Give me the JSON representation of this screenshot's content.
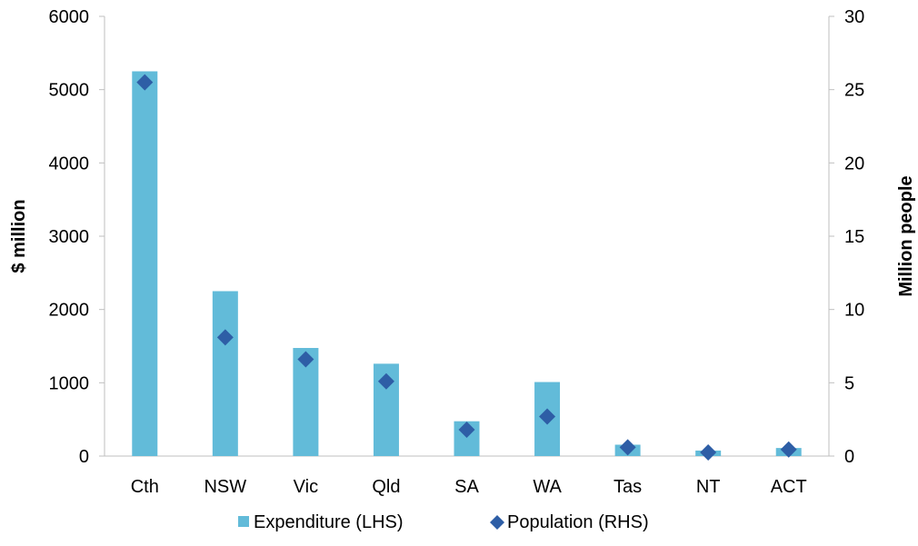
{
  "chart_data": {
    "type": "bar",
    "categories": [
      "Cth",
      "NSW",
      "Vic",
      "Qld",
      "SA",
      "WA",
      "Tas",
      "NT",
      "ACT"
    ],
    "series": [
      {
        "name": "Expenditure (LHS)",
        "type": "bar",
        "axis": "left",
        "color": "#62BBD9",
        "values": [
          5250,
          2250,
          1475,
          1260,
          475,
          1010,
          155,
          75,
          110
        ]
      },
      {
        "name": "Population (RHS)",
        "type": "scatter",
        "marker": "diamond",
        "axis": "right",
        "color": "#2E5EA6",
        "values": [
          25.5,
          8.1,
          6.6,
          5.1,
          1.8,
          2.7,
          0.6,
          0.25,
          0.45
        ]
      }
    ],
    "ylabel": "$ million",
    "ylabel_right": "Million people",
    "ylim": [
      0,
      6000
    ],
    "ylim_right": [
      0,
      30
    ],
    "yticks": [
      "0",
      "1000",
      "2000",
      "3000",
      "4000",
      "5000",
      "6000"
    ],
    "yticks_right": [
      "0",
      "5",
      "10",
      "15",
      "20",
      "25",
      "30"
    ],
    "grid": false,
    "legend_position": "bottom"
  }
}
